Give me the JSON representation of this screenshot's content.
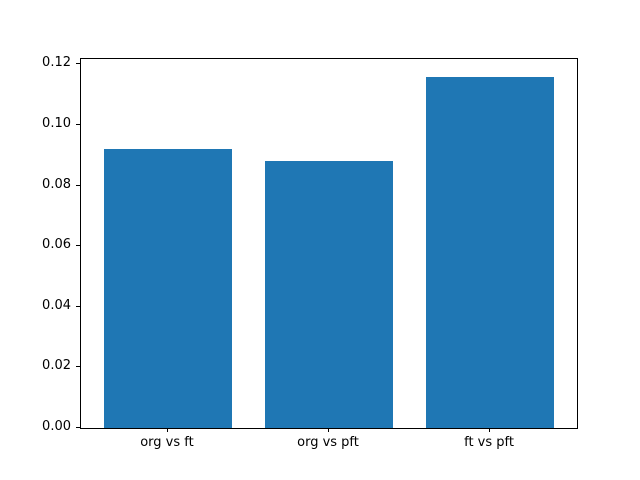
{
  "chart_data": {
    "type": "bar",
    "categories": [
      "org vs ft",
      "org vs pft",
      "ft vs pft"
    ],
    "values": [
      0.092,
      0.088,
      0.116
    ],
    "title": "",
    "xlabel": "",
    "ylabel": "",
    "ylim": [
      0,
      0.1218
    ],
    "yticks": [
      0.0,
      0.02,
      0.04,
      0.06,
      0.08,
      0.1,
      0.12
    ],
    "ytick_labels": [
      "0.00",
      "0.02",
      "0.04",
      "0.06",
      "0.08",
      "0.10",
      "0.12"
    ],
    "bar_color": "#1f77b4",
    "bar_relative_width": 0.8,
    "grid": false,
    "legend": null,
    "spine_color": "#000000",
    "background_color": "#ffffff"
  }
}
